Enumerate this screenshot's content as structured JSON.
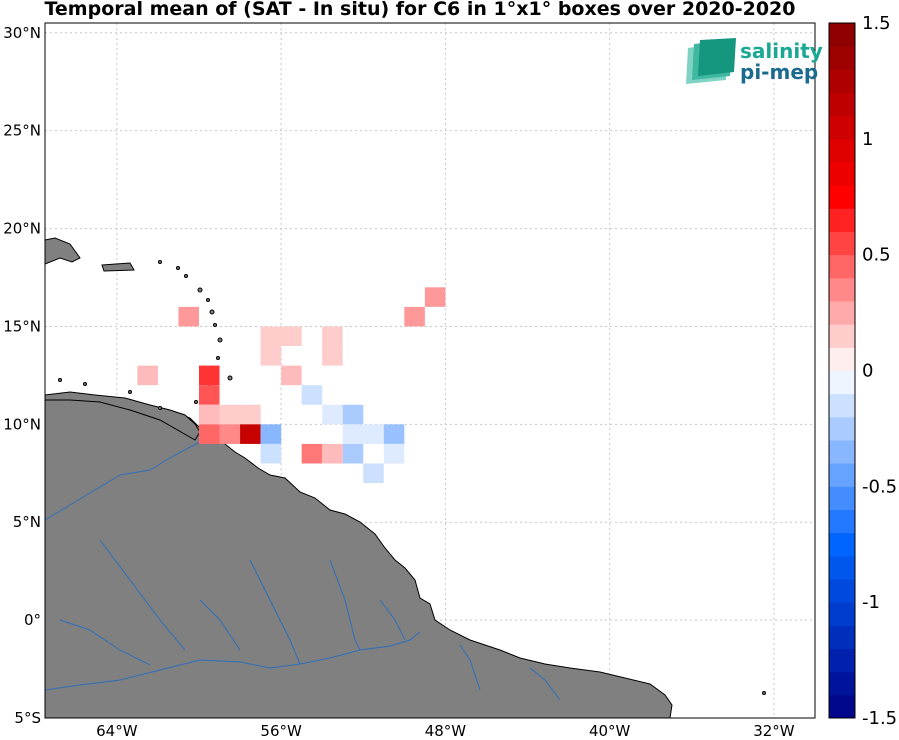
{
  "title": "Temporal mean of (SAT - In situ) for C6 in 1°x1° boxes over 2020-2020",
  "logo": {
    "line1": "salinity",
    "line2": "pi-mep",
    "color": "#1aa894",
    "icon": "salinity-waves-logo-icon"
  },
  "colors": {
    "land": "#808080",
    "rivers": "#2e6fb8",
    "coast": "#000000",
    "grid": "#c8c8c8"
  },
  "map_extent": {
    "lon": [
      -67.5,
      -30
    ],
    "lat": [
      -5,
      30.5
    ]
  },
  "lat_ticks": [
    {
      "value": 30,
      "label": "30°N"
    },
    {
      "value": 25,
      "label": "25°N"
    },
    {
      "value": 20,
      "label": "20°N"
    },
    {
      "value": 15,
      "label": "15°N"
    },
    {
      "value": 10,
      "label": "10°N"
    },
    {
      "value": 5,
      "label": "5°N"
    },
    {
      "value": 0,
      "label": "0°"
    },
    {
      "value": -5,
      "label": "5°S"
    }
  ],
  "lon_ticks": [
    {
      "value": -64,
      "label": "64°W"
    },
    {
      "value": -56,
      "label": "56°W"
    },
    {
      "value": -48,
      "label": "48°W"
    },
    {
      "value": -40,
      "label": "40°W"
    },
    {
      "value": -32,
      "label": "32°W"
    }
  ],
  "colorbar": {
    "min": -1.5,
    "max": 1.5,
    "ticks": [
      {
        "value": 1.5,
        "label": "1.5"
      },
      {
        "value": 1,
        "label": "1"
      },
      {
        "value": 0.5,
        "label": "0.5"
      },
      {
        "value": 0,
        "label": "0"
      },
      {
        "value": -0.5,
        "label": "-0.5"
      },
      {
        "value": -1,
        "label": "-1"
      },
      {
        "value": -1.5,
        "label": "-1.5"
      }
    ]
  },
  "chart_data": {
    "type": "heatmap",
    "cells": [
      {
        "lon": -48.5,
        "lat": 16.5,
        "value": 0.3
      },
      {
        "lon": -49.5,
        "lat": 15.5,
        "value": 0.3
      },
      {
        "lon": -60.5,
        "lat": 15.5,
        "value": 0.3
      },
      {
        "lon": -56.5,
        "lat": 14.5,
        "value": 0.15
      },
      {
        "lon": -55.5,
        "lat": 14.5,
        "value": 0.15
      },
      {
        "lon": -53.5,
        "lat": 14.5,
        "value": 0.15
      },
      {
        "lon": -56.5,
        "lat": 13.5,
        "value": 0.15
      },
      {
        "lon": -53.5,
        "lat": 13.5,
        "value": 0.15
      },
      {
        "lon": -62.5,
        "lat": 12.5,
        "value": 0.2
      },
      {
        "lon": -59.5,
        "lat": 12.5,
        "value": 0.6
      },
      {
        "lon": -55.5,
        "lat": 12.5,
        "value": 0.2
      },
      {
        "lon": -59.5,
        "lat": 11.5,
        "value": 0.5
      },
      {
        "lon": -54.5,
        "lat": 11.5,
        "value": -0.15
      },
      {
        "lon": -59.5,
        "lat": 10.5,
        "value": 0.2
      },
      {
        "lon": -58.5,
        "lat": 10.5,
        "value": 0.15
      },
      {
        "lon": -57.5,
        "lat": 10.5,
        "value": 0.15
      },
      {
        "lon": -53.5,
        "lat": 10.5,
        "value": -0.1
      },
      {
        "lon": -52.5,
        "lat": 10.5,
        "value": -0.25
      },
      {
        "lon": -59.5,
        "lat": 9.5,
        "value": 0.45
      },
      {
        "lon": -58.5,
        "lat": 9.5,
        "value": 0.35
      },
      {
        "lon": -57.5,
        "lat": 9.5,
        "value": 1.1
      },
      {
        "lon": -56.5,
        "lat": 9.5,
        "value": -0.35
      },
      {
        "lon": -52.5,
        "lat": 9.5,
        "value": -0.1
      },
      {
        "lon": -51.5,
        "lat": 9.5,
        "value": -0.1
      },
      {
        "lon": -50.5,
        "lat": 9.5,
        "value": -0.3
      },
      {
        "lon": -56.5,
        "lat": 8.5,
        "value": -0.15
      },
      {
        "lon": -54.5,
        "lat": 8.5,
        "value": 0.4
      },
      {
        "lon": -53.5,
        "lat": 8.5,
        "value": 0.2
      },
      {
        "lon": -52.5,
        "lat": 8.5,
        "value": -0.25
      },
      {
        "lon": -50.5,
        "lat": 8.5,
        "value": -0.1
      },
      {
        "lon": -51.5,
        "lat": 7.5,
        "value": -0.15
      }
    ]
  }
}
